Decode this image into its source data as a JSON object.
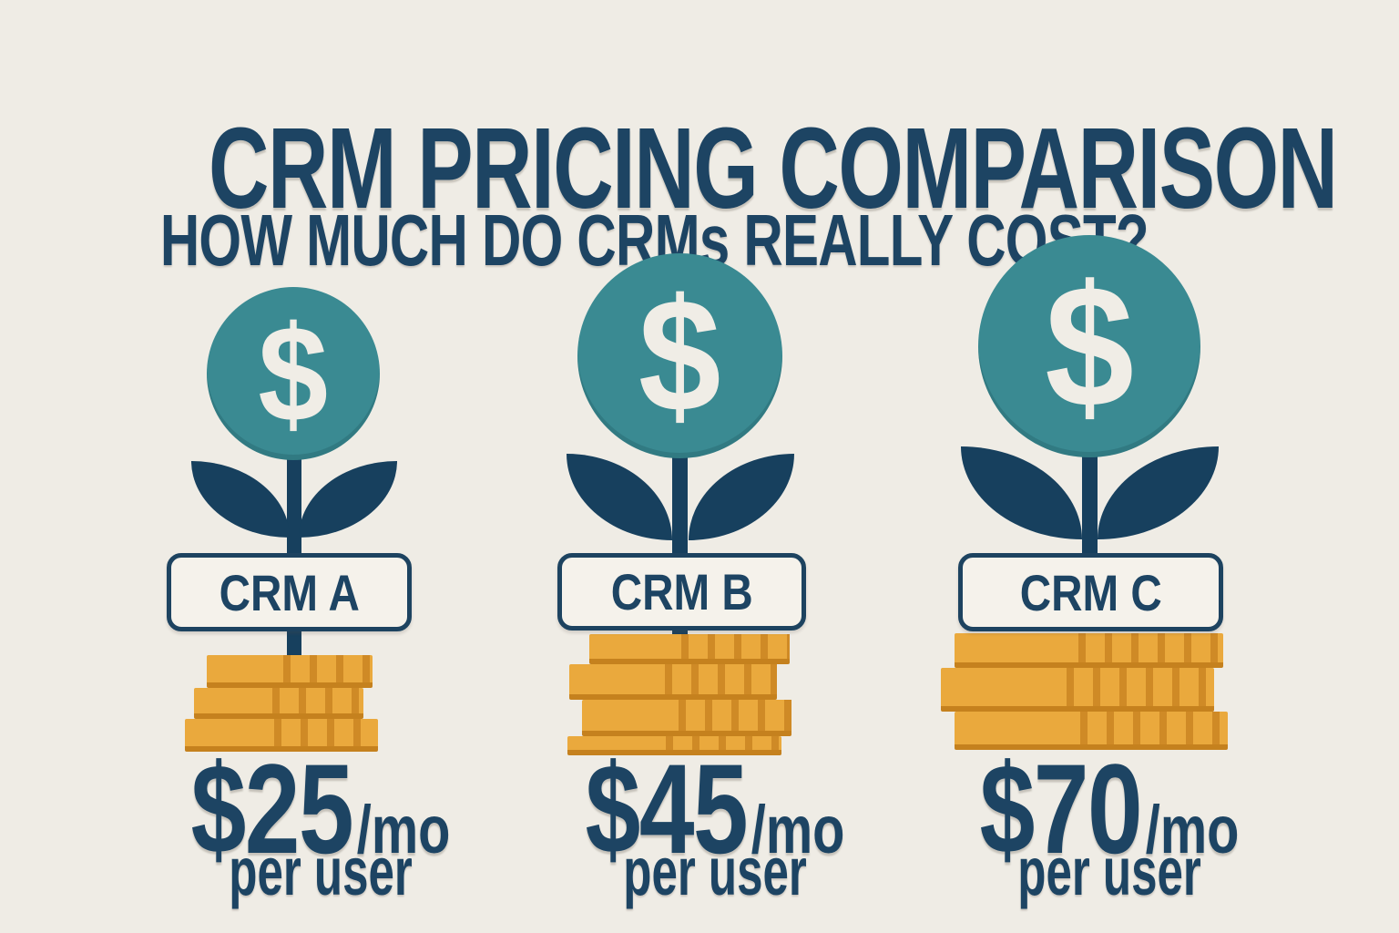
{
  "header": {
    "title": "CRM PRICING COMPARISON",
    "subtitle": "HOW MUCH DO CRMs REALLY COST?"
  },
  "plans": [
    {
      "name": "CRM A",
      "currency_symbol": "$",
      "price": "$25",
      "period": "/mo",
      "unit": "per user"
    },
    {
      "name": "CRM B",
      "currency_symbol": "$",
      "price": "$45",
      "period": "/mo",
      "unit": "per user"
    },
    {
      "name": "CRM C",
      "currency_symbol": "$",
      "price": "$70",
      "period": "/mo",
      "unit": "per user"
    }
  ],
  "colors": {
    "background": "#efece5",
    "navy_text": "#1d4463",
    "navy_shape": "#17405e",
    "teal_circle": "#3a8a92",
    "dollar_cream": "#f0ede6",
    "coin_gold": "#eaa93d",
    "coin_ridge_dark": "#cf8a26",
    "coin_edge_deep": "#c5811e",
    "badge_fill": "#f5f2eb"
  },
  "chart_data": {
    "type": "bar",
    "title": "CRM PRICING COMPARISON",
    "subtitle": "HOW MUCH DO CRMs REALLY COST?",
    "categories": [
      "CRM A",
      "CRM B",
      "CRM C"
    ],
    "values": [
      25,
      45,
      70
    ],
    "unit": "USD per user per month",
    "value_labels": [
      "$25/mo per user",
      "$45/mo per user",
      "$70/mo per user"
    ],
    "coin_stack_counts": [
      3,
      4,
      3
    ],
    "encoding": "money-plant pictograph; plant circle size and coin stack grow with price",
    "legend_position": "none",
    "grid": false
  }
}
